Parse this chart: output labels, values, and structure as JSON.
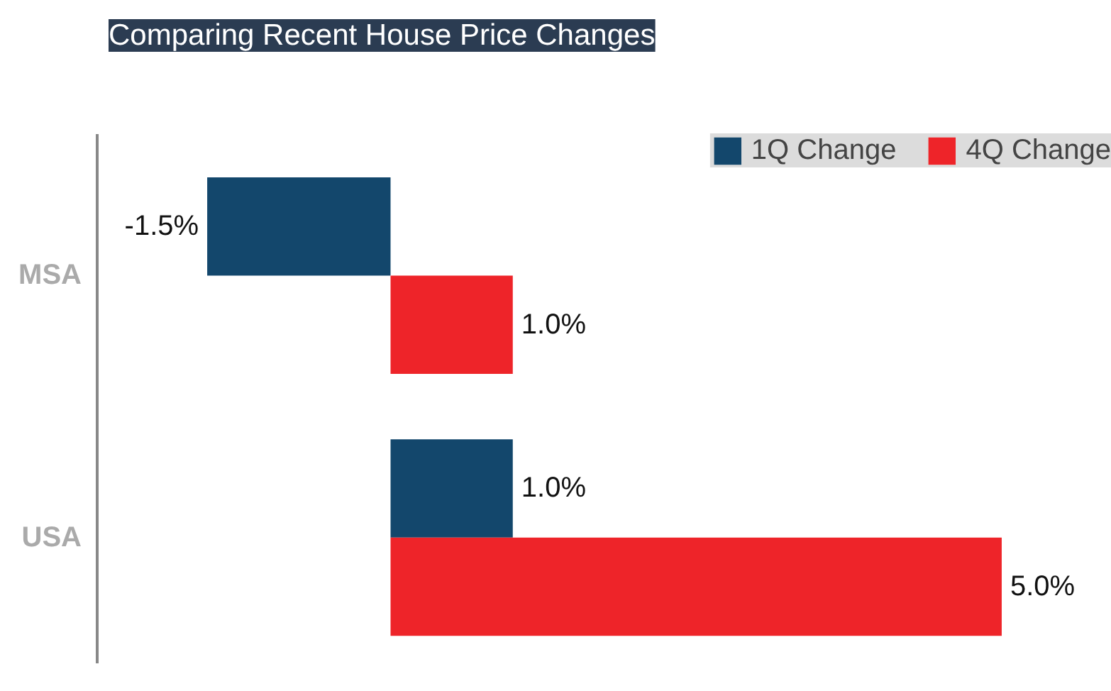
{
  "chart_data": {
    "type": "bar",
    "orientation": "horizontal",
    "title": "Comparing Recent House Price Changes",
    "categories": [
      "MSA",
      "USA"
    ],
    "series": [
      {
        "name": "1Q Change",
        "color": "#13476c",
        "values": [
          -1.5,
          1.0
        ],
        "value_labels": [
          "-1.5%",
          "1.0%"
        ]
      },
      {
        "name": "4Q Change",
        "color": "#ee2429",
        "values": [
          1.0,
          5.0
        ],
        "value_labels": [
          "1.0%",
          "5.0%"
        ]
      }
    ],
    "xlim": [
      -2.4,
      5.9
    ],
    "legend": "top right",
    "grid": false
  }
}
